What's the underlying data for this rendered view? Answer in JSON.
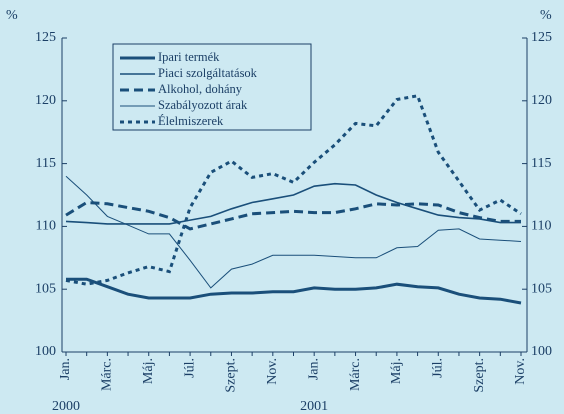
{
  "chart_data": {
    "type": "line",
    "ylabel": "%",
    "y2label": "%",
    "categories": [
      "Jan.",
      null,
      "Márc.",
      null,
      "Máj.",
      null,
      "Júl.",
      null,
      "Szept.",
      null,
      "Nov.",
      null,
      "Jan.",
      null,
      "Márc.",
      null,
      "Máj.",
      null,
      "Júl.",
      null,
      "Szept.",
      null,
      "Nov."
    ],
    "years": [
      "2000",
      "2001"
    ],
    "ylim": [
      100,
      125
    ],
    "yticks": [
      100,
      105,
      110,
      115,
      120,
      125
    ],
    "y2lim": [
      100,
      125
    ],
    "y2ticks": [
      100,
      105,
      110,
      115,
      120,
      125
    ],
    "series": [
      {
        "name": "Ipari termék",
        "color": "#1a4f7a",
        "dash": "solid",
        "weight": "heavy",
        "values": [
          105.8,
          105.8,
          105.2,
          104.6,
          104.3,
          104.3,
          104.3,
          104.6,
          104.7,
          104.7,
          104.8,
          104.8,
          105.1,
          105.0,
          105.0,
          105.1,
          105.4,
          105.2,
          105.1,
          104.6,
          104.3,
          104.2,
          103.9
        ]
      },
      {
        "name": "Piaci szolgáltatások",
        "color": "#1a4f7a",
        "dash": "solid",
        "weight": "medium",
        "values": [
          110.4,
          110.3,
          110.2,
          110.2,
          110.2,
          110.2,
          110.5,
          110.8,
          111.4,
          111.9,
          112.2,
          112.5,
          113.2,
          113.4,
          113.3,
          112.5,
          111.9,
          111.4,
          110.9,
          110.7,
          110.6,
          110.3,
          110.3
        ]
      },
      {
        "name": "Alkohol, dohány",
        "color": "#1a4f7a",
        "dash": "dashed",
        "weight": "heavy",
        "values": [
          110.9,
          111.9,
          111.8,
          111.5,
          111.2,
          110.7,
          109.8,
          110.2,
          110.6,
          111.0,
          111.1,
          111.2,
          111.1,
          111.1,
          111.4,
          111.8,
          111.7,
          111.8,
          111.7,
          111.1,
          110.7,
          110.4,
          110.4
        ]
      },
      {
        "name": "Szabályozott árak",
        "color": "#1a4f7a",
        "dash": "solid",
        "weight": "light",
        "values": [
          114.0,
          112.5,
          110.8,
          110.1,
          109.4,
          109.4,
          107.3,
          105.1,
          106.6,
          107.0,
          107.7,
          107.7,
          107.7,
          107.6,
          107.5,
          107.5,
          108.3,
          108.4,
          109.7,
          109.8,
          109.0,
          108.9,
          108.8
        ]
      },
      {
        "name": "Élelmiszerek",
        "color": "#1a4f7a",
        "dash": "dotted",
        "weight": "heavy",
        "values": [
          105.7,
          105.4,
          105.7,
          106.3,
          106.8,
          106.4,
          111.5,
          114.3,
          115.2,
          113.9,
          114.2,
          113.5,
          115.1,
          116.5,
          118.2,
          118.0,
          120.1,
          120.4,
          115.9,
          113.6,
          111.3,
          112.1,
          111.0
        ]
      }
    ]
  }
}
